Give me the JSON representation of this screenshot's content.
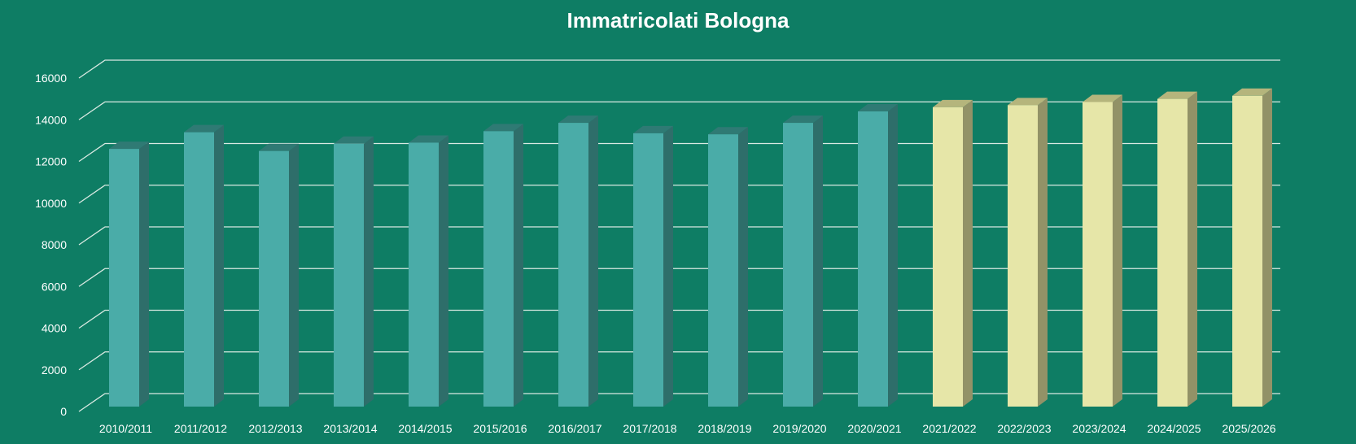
{
  "chart_data": {
    "type": "bar",
    "title": "Immatricolati Bologna",
    "xlabel": "",
    "ylabel": "",
    "ylim": [
      0,
      16000
    ],
    "yticks": [
      0,
      2000,
      4000,
      6000,
      8000,
      10000,
      12000,
      14000,
      16000
    ],
    "grid": true,
    "categories": [
      "2010/2011",
      "2011/2012",
      "2012/2013",
      "2013/2014",
      "2014/2015",
      "2015/2016",
      "2016/2017",
      "2017/2018",
      "2018/2019",
      "2019/2020",
      "2020/2021",
      "2021/2022",
      "2022/2023",
      "2023/2024",
      "2024/2025",
      "2025/2026"
    ],
    "values": [
      12600,
      13400,
      12500,
      12850,
      12900,
      13450,
      13850,
      13350,
      13300,
      13850,
      14400,
      14600,
      14700,
      14850,
      15000,
      15150
    ],
    "projected_from_index": 11,
    "colors": {
      "actual_front": "#4aaca8",
      "actual_side": "#2e6e6a",
      "actual_top": "#2f7a74",
      "projected_front": "#e6e6a8",
      "projected_side": "#929267",
      "projected_top": "#b5b57c",
      "background": "#0e7d64",
      "grid": "#d9e9e2",
      "text": "#ffffff"
    }
  }
}
